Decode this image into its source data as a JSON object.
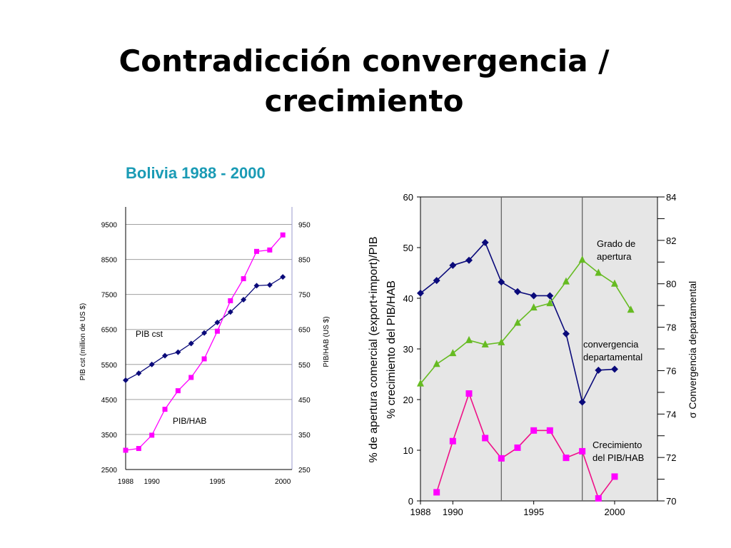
{
  "slide": {
    "title_line1": "Contradicción convergencia /",
    "title_line2": "crecimiento",
    "subtitle": "Bolivia 1988 - 2000"
  },
  "chart_data": [
    {
      "type": "line",
      "title": "Bolivia 1988 - 2000",
      "xlabel": "",
      "ylabel": "PIB cst (million de US $)",
      "y2label": "PIB/HAB (US $)",
      "xlim": [
        1988,
        2000
      ],
      "ylim": [
        2500,
        10000
      ],
      "y2lim": [
        250,
        1000
      ],
      "x_ticks": [
        "1988",
        "1990",
        "1995",
        "2000"
      ],
      "y_ticks": [
        "2500",
        "3500",
        "4500",
        "5500",
        "6500",
        "7500",
        "8500",
        "9500"
      ],
      "y2_ticks": [
        "250",
        "350",
        "450",
        "550",
        "650",
        "750",
        "850",
        "950"
      ],
      "grid": true,
      "series": [
        {
          "name": "PIB cst",
          "axis": "left",
          "color": "#0a0a7a",
          "marker": "diamond",
          "x": [
            1988,
            1989,
            1990,
            1991,
            1992,
            1993,
            1994,
            1995,
            1996,
            1997,
            1998,
            1999,
            2000
          ],
          "values": [
            5050,
            5250,
            5500,
            5750,
            5850,
            6100,
            6400,
            6700,
            7000,
            7350,
            7750,
            7770,
            8000
          ]
        },
        {
          "name": "PIB/HAB",
          "axis": "right",
          "color": "#ff00ff",
          "marker": "square",
          "x": [
            1988,
            1989,
            1990,
            1991,
            1992,
            1993,
            1994,
            1995,
            1996,
            1997,
            1998,
            1999,
            2000
          ],
          "values": [
            305,
            310,
            348,
            422,
            475,
            513,
            566,
            645,
            732,
            795,
            873,
            877,
            920
          ]
        }
      ]
    },
    {
      "type": "line",
      "title": "",
      "xlabel": "",
      "ylabel": "% de apertura comercial (export+import)/PIB",
      "ylabel2": "% crecimiento del PIB/HAB",
      "y2label": "σ Convergencia departamental",
      "xlim": [
        1988,
        2003
      ],
      "ylim": [
        0,
        60
      ],
      "y2lim": [
        70,
        84
      ],
      "x_ticks": [
        "1988",
        "1990",
        "1995",
        "2000"
      ],
      "y_ticks": [
        "0",
        "10",
        "20",
        "30",
        "40",
        "50",
        "60"
      ],
      "y2_ticks": [
        "70",
        "72",
        "74",
        "76",
        "78",
        "80",
        "82",
        "84"
      ],
      "vlines": [
        1993,
        1998
      ],
      "grid": false,
      "series": [
        {
          "name": "Grado de apertura",
          "axis": "left",
          "color": "#0a0a7a",
          "marker": "diamond",
          "x": [
            1988,
            1989,
            1990,
            1991,
            1992,
            1993,
            1994,
            1995,
            1996,
            1997,
            1998,
            1999,
            2000
          ],
          "values": [
            41,
            43.5,
            46.5,
            47.5,
            51,
            43.2,
            41.3,
            40.5,
            40.5,
            33,
            19.5,
            25.8,
            26
          ]
        },
        {
          "name": "convergencia departamental",
          "axis": "right",
          "color": "#66bb22",
          "marker": "triangle",
          "x": [
            1988,
            1989,
            1990,
            1991,
            1992,
            1993,
            1994,
            1995,
            1996,
            1997,
            1998,
            1999,
            2000,
            2001
          ],
          "values": [
            75.4,
            76.3,
            76.8,
            77.4,
            77.2,
            77.3,
            78.2,
            78.9,
            79.1,
            80.1,
            81.1,
            80.5,
            80.0,
            78.8
          ]
        },
        {
          "name": "Crecimiento del PIB/HAB",
          "axis": "left",
          "color": "#ee1188",
          "marker_color": "#ff00ff",
          "marker": "square",
          "x": [
            1989,
            1990,
            1991,
            1992,
            1993,
            1994,
            1995,
            1996,
            1997,
            1998,
            1999,
            2000
          ],
          "values": [
            1.7,
            11.8,
            21.2,
            12.4,
            8.4,
            10.5,
            13.9,
            13.9,
            8.5,
            9.8,
            0.5,
            4.8
          ]
        }
      ],
      "annotations": [
        "Grado de",
        "apertura",
        "convergencia",
        "departamental",
        "Crecimiento",
        "del PIB/HAB"
      ]
    }
  ]
}
